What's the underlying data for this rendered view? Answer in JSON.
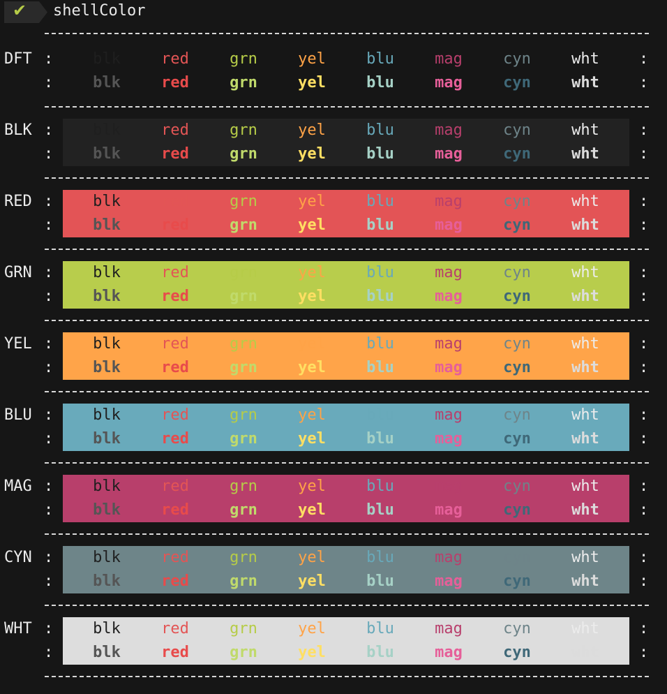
{
  "window": {
    "title": "shellColor",
    "status_icon": "check-icon"
  },
  "colors": {
    "fg": {
      "blk": "#1f1f1f",
      "red": "#e35555",
      "grn": "#b6cc48",
      "yel": "#ffa347",
      "blu": "#68a9ba",
      "mag": "#b83f6c",
      "cyn": "#6e8489",
      "wht": "#ececec"
    },
    "bold": {
      "blk": "#555555",
      "red": "#e84b4b",
      "grn": "#c0da6b",
      "yel": "#ffdf63",
      "blu": "#a6d1c6",
      "mag": "#e65f99",
      "cyn": "#3f6878",
      "wht": "#dcdcdc"
    },
    "bg": {
      "DFT": "transparent",
      "BLK": "#222222",
      "RED": "#e35456",
      "GRN": "#b8cd4c",
      "YEL": "#ffa449",
      "BLU": "#69aabb",
      "MAG": "#b83f6b",
      "CYN": "#6e8589",
      "WHT": "#dddddd"
    }
  },
  "color_names": [
    "blk",
    "red",
    "grn",
    "yel",
    "blu",
    "mag",
    "cyn",
    "wht"
  ],
  "rows": [
    {
      "label": "DFT",
      "bg": "DFT"
    },
    {
      "label": "BLK",
      "bg": "BLK"
    },
    {
      "label": "RED",
      "bg": "RED"
    },
    {
      "label": "GRN",
      "bg": "GRN"
    },
    {
      "label": "YEL",
      "bg": "YEL"
    },
    {
      "label": "BLU",
      "bg": "BLU"
    },
    {
      "label": "MAG",
      "bg": "MAG"
    },
    {
      "label": "CYN",
      "bg": "CYN"
    },
    {
      "label": "WHT",
      "bg": "WHT"
    }
  ],
  "separator": ":"
}
